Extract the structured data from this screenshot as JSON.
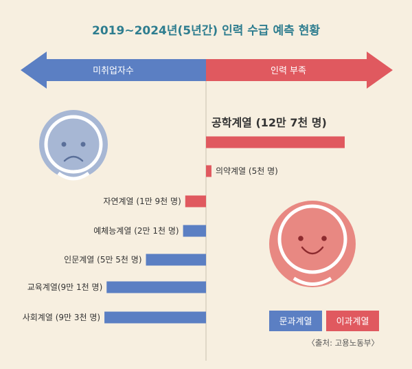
{
  "chart_data": {
    "type": "bar",
    "title": "2019~2024년(5년간) 인력 수급 예측 현황",
    "arrow_left_label": "미취업자수",
    "arrow_right_label": "인력 부족",
    "unit": "명",
    "categories": [
      "공학계열 (12만 7천 명)",
      "의약계열 (5천 명)",
      "자연계열 (1만 9천 명)",
      "예체능계열 (2만 1천 명)",
      "인문계열 (5만 5천 명)",
      "교육계열(9만 1천 명)",
      "사회계열 (9만 3천 명)"
    ],
    "values": [
      127000,
      5000,
      -19000,
      -21000,
      -55000,
      -91000,
      -93000
    ],
    "legend": [
      "문과계열",
      "이과계열"
    ],
    "legend_placement": "bottom-right",
    "source": "〈출처: 고용노동부〉",
    "colors": {
      "background": "#f7efe0",
      "title": "#2e7d8f",
      "blue": "#5b7fc3",
      "red": "#e0595f",
      "sad_face": "#a7b7d4",
      "happy_face": "#e88882",
      "text": "#333333"
    }
  }
}
